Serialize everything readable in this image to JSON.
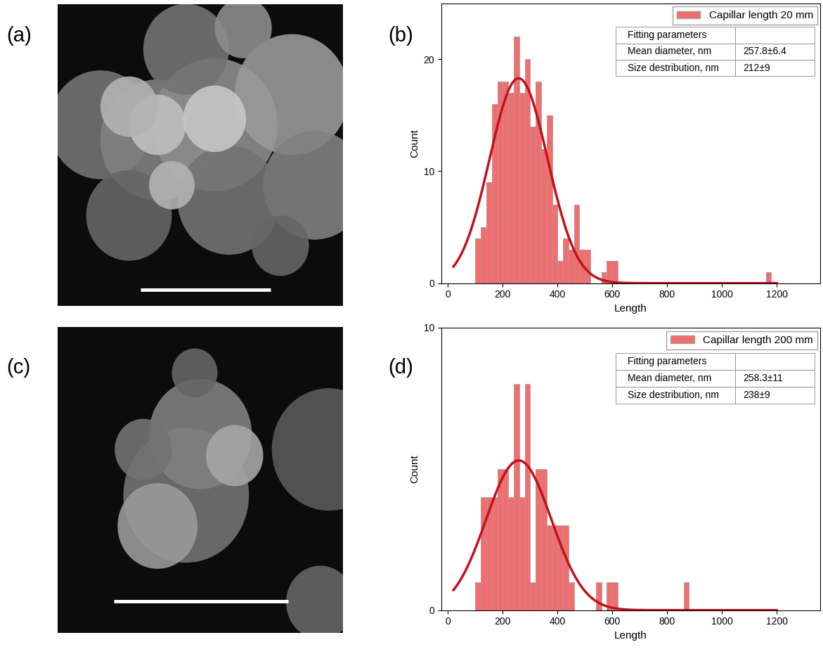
{
  "panel_labels": [
    "(a)",
    "(b)",
    "(c)",
    "(d)"
  ],
  "chart_data": [
    {
      "type": "histogram",
      "xlabel": "Length",
      "ylabel": "Count",
      "xlim": [
        -25,
        1360
      ],
      "ylim": [
        0,
        25
      ],
      "xticks": [
        0,
        200,
        400,
        600,
        800,
        1000,
        1200
      ],
      "yticks": [
        0,
        10,
        20
      ],
      "legend": "upper right",
      "series": [
        {
          "name": "Capillar length 20 mm",
          "color": "#f26d6d",
          "bins": [
            100,
            120,
            140,
            160,
            180,
            200,
            220,
            240,
            260,
            280,
            300,
            320,
            340,
            360,
            380,
            400,
            420,
            440,
            460,
            480,
            500,
            520,
            540,
            560,
            580,
            600,
            620,
            640,
            660,
            680,
            700,
            720,
            740,
            760,
            780,
            800,
            820,
            840,
            860,
            880,
            900,
            920,
            940,
            960,
            980,
            1000,
            1020,
            1040,
            1060,
            1080,
            1100,
            1120,
            1140,
            1160,
            1180
          ],
          "counts": [
            4,
            5,
            9,
            16,
            18,
            18,
            17,
            22,
            17,
            20,
            14,
            18,
            12,
            15,
            7,
            2,
            4,
            3,
            7,
            3,
            3,
            0,
            0,
            1,
            2,
            2,
            0,
            0,
            0,
            0,
            0,
            0,
            0,
            0,
            0,
            0,
            0,
            0,
            0,
            0,
            0,
            0,
            0,
            0,
            0,
            0,
            0,
            0,
            0,
            0,
            0,
            0,
            0,
            1
          ]
        }
      ],
      "fit": {
        "type": "line",
        "color": "#c1121c",
        "center": 257.8,
        "width": 212,
        "peak": 18.3,
        "x_range": [
          20,
          1200
        ]
      },
      "table": {
        "rows": [
          [
            "Fitting parameters"
          ],
          [
            "Mean diameter, nm",
            "257.8±6.4"
          ],
          [
            "Size destribution, nm",
            "212±9"
          ]
        ]
      }
    },
    {
      "type": "histogram",
      "xlabel": "Length",
      "ylabel": "Count",
      "xlim": [
        -25,
        1360
      ],
      "ylim": [
        0,
        10
      ],
      "xticks": [
        0,
        200,
        400,
        600,
        800,
        1000,
        1200
      ],
      "yticks": [
        0,
        10
      ],
      "legend": "upper right",
      "series": [
        {
          "name": "Capillar length 200 mm",
          "color": "#f26d6d",
          "bins": [
            100,
            120,
            140,
            160,
            180,
            200,
            220,
            240,
            260,
            280,
            300,
            320,
            340,
            360,
            380,
            400,
            420,
            440,
            460,
            480,
            500,
            520,
            540,
            560,
            580,
            600,
            620,
            640,
            660,
            680,
            700,
            720,
            740,
            760,
            780,
            800,
            820,
            840,
            860,
            880
          ],
          "counts": [
            1,
            4,
            4,
            4,
            5,
            5,
            4,
            8,
            4,
            8,
            1,
            5,
            5,
            3,
            3,
            3,
            3,
            1,
            0,
            0,
            0,
            0,
            1,
            0,
            1,
            1,
            0,
            0,
            0,
            0,
            0,
            0,
            0,
            0,
            0,
            0,
            0,
            0,
            1
          ]
        }
      ],
      "fit": {
        "type": "line",
        "color": "#c1121c",
        "center": 258.3,
        "width": 238,
        "peak": 5.3,
        "x_range": [
          20,
          1200
        ]
      },
      "table": {
        "rows": [
          [
            "Fitting parameters"
          ],
          [
            "Mean diameter, nm",
            "258.3±11"
          ],
          [
            "Size destribution, nm",
            "238±9"
          ]
        ]
      }
    }
  ]
}
